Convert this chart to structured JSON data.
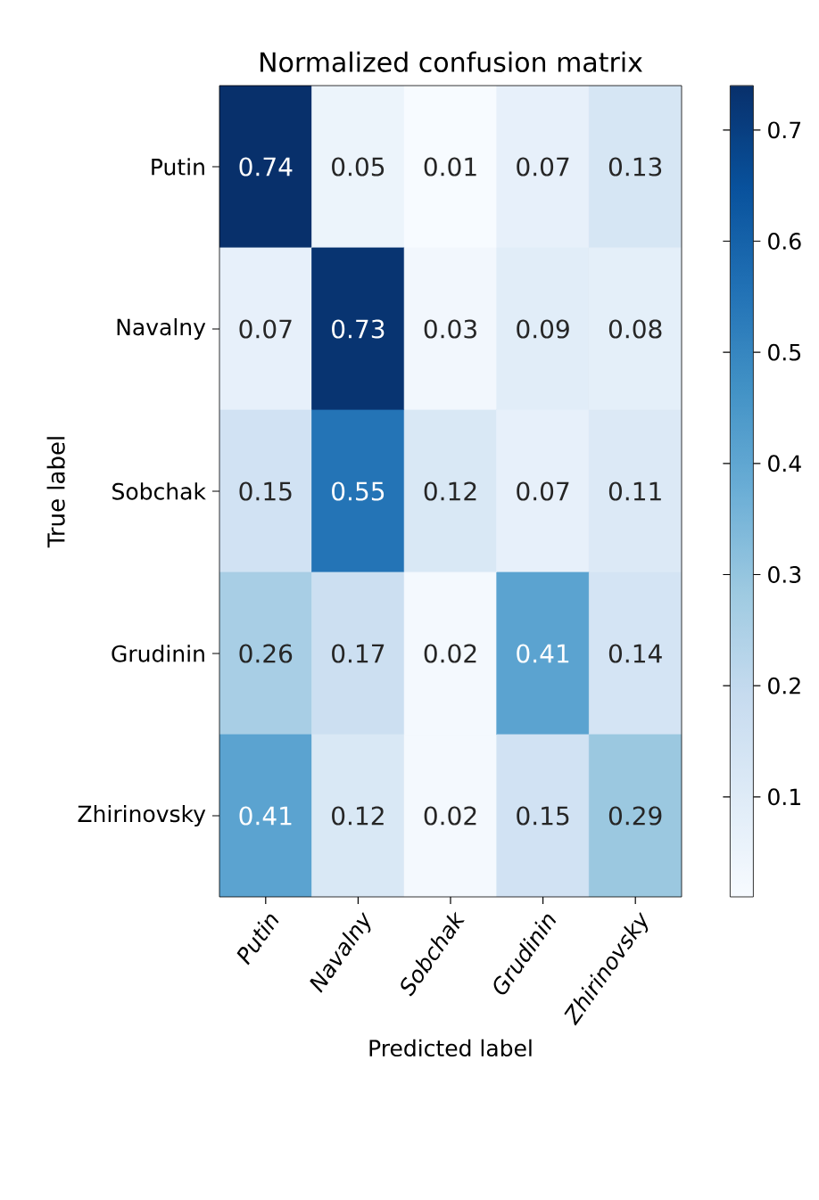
{
  "chart_data": {
    "type": "heatmap",
    "title": "Normalized confusion matrix",
    "xlabel": "Predicted label",
    "ylabel": "True label",
    "categories": [
      "Putin",
      "Navalny",
      "Sobchak",
      "Grudinin",
      "Zhirinovsky"
    ],
    "y_categories": [
      "Putin",
      "Navalny",
      "Sobchak",
      "Grudinin",
      "Zhirinovsky"
    ],
    "cells": [
      [
        0.74,
        0.05,
        0.01,
        0.07,
        0.13
      ],
      [
        0.07,
        0.73,
        0.03,
        0.09,
        0.08
      ],
      [
        0.15,
        0.55,
        0.12,
        0.07,
        0.11
      ],
      [
        0.26,
        0.17,
        0.02,
        0.41,
        0.14
      ],
      [
        0.41,
        0.12,
        0.02,
        0.15,
        0.29
      ]
    ],
    "clim": [
      0.01,
      0.74
    ],
    "cticks": [
      0.1,
      0.2,
      0.3,
      0.4,
      0.5,
      0.6,
      0.7
    ],
    "data_labels": true
  }
}
